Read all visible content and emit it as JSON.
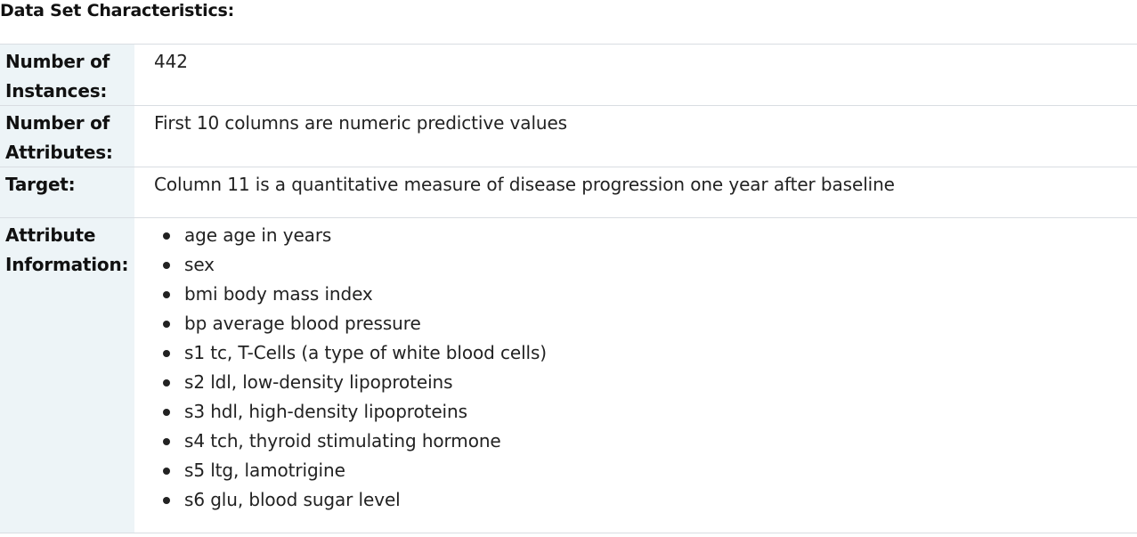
{
  "heading": "Data Set Characteristics:",
  "fields": {
    "instances": {
      "label": "Number of Instances:",
      "value": "442"
    },
    "attributes": {
      "label": "Number of Attributes:",
      "value": "First 10 columns are numeric predictive values"
    },
    "target": {
      "label": "Target:",
      "value": "Column 11 is a quantitative measure of disease progression one year after baseline"
    },
    "info": {
      "label": "Attribute Information:",
      "items": [
        "age age in years",
        "sex",
        "bmi body mass index",
        "bp average blood pressure",
        "s1 tc, T-Cells (a type of white blood cells)",
        "s2 ldl, low-density lipoproteins",
        "s3 hdl, high-density lipoproteins",
        "s4 tch, thyroid stimulating hormone",
        "s5 ltg, lamotrigine",
        "s6 glu, blood sugar level"
      ]
    }
  }
}
